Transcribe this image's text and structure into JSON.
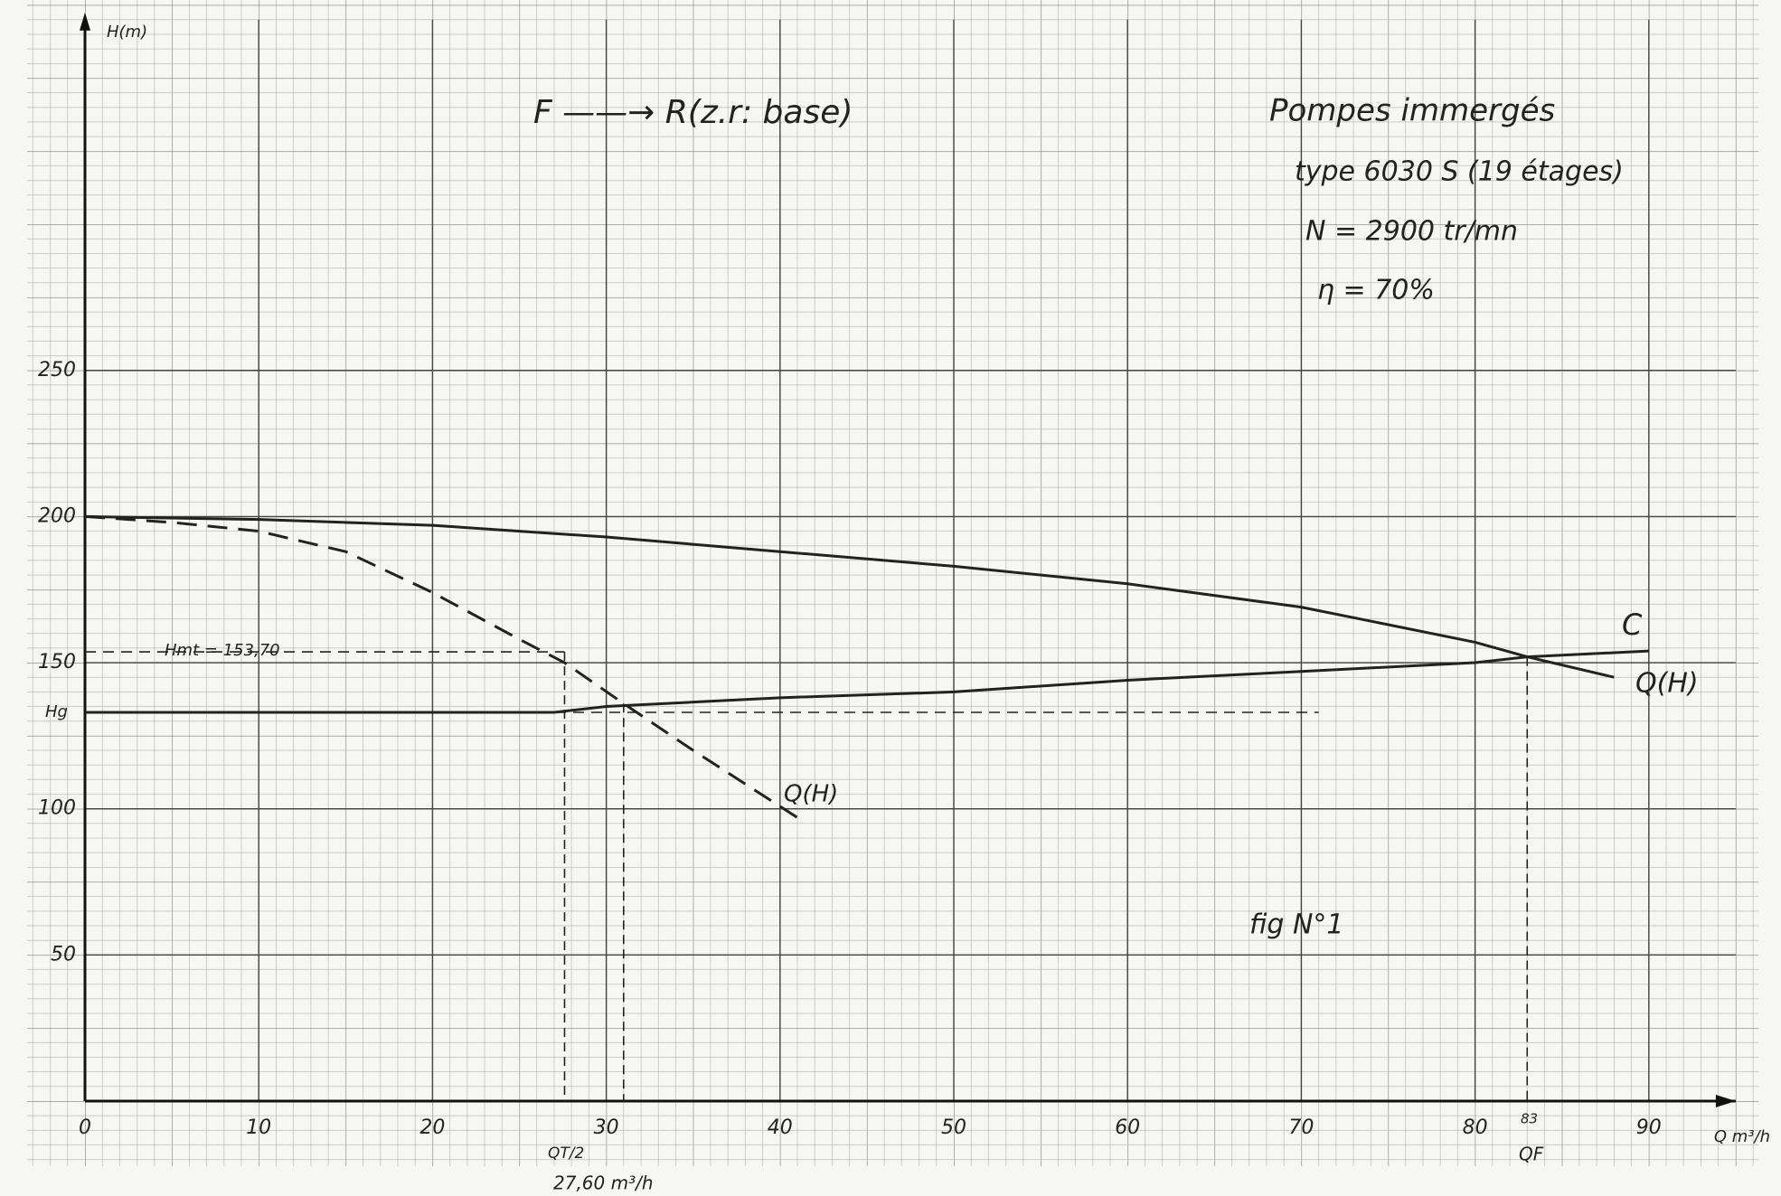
{
  "chart_data": {
    "type": "line",
    "y_label": "H(m)",
    "x_label": "Q m³/h",
    "annotations": {
      "scheme": "F ——→ R(z.r: base)",
      "title": "Pompes immergés",
      "pump_type": "type 6030 S (19 étages)",
      "speed": "N = 2900 tr/mn",
      "efficiency": "η = 70%",
      "figure": "fig N°1",
      "hmt": "Hmt = 153,70",
      "hg": "Hg",
      "qf_value": "83",
      "qf": "QF",
      "qt2": "QT/2",
      "qt2_value": "27,60 m³/h"
    },
    "xlim": [
      0,
      95
    ],
    "ylim": [
      0,
      370
    ],
    "xticks": [
      0,
      10,
      20,
      30,
      40,
      50,
      60,
      70,
      80,
      90
    ],
    "yticks": [
      50,
      100,
      150,
      200,
      250
    ],
    "grid": true,
    "series": [
      {
        "name": "Q(H)",
        "color": "#222222",
        "dashed": false,
        "x": [
          0,
          10,
          20,
          30,
          40,
          50,
          60,
          70,
          80,
          83,
          88
        ],
        "values": [
          200,
          199,
          197,
          193,
          188,
          183,
          177,
          169,
          157,
          152,
          145
        ]
      },
      {
        "name": "C",
        "color": "#222222",
        "dashed": false,
        "x": [
          0,
          20,
          27,
          30,
          40,
          50,
          60,
          70,
          80,
          83,
          90
        ],
        "values": [
          133,
          133,
          133,
          135,
          138,
          140,
          144,
          147,
          150,
          152,
          154
        ]
      },
      {
        "name": "Q(H)",
        "color": "#222222",
        "dashed": true,
        "x": [
          0,
          5,
          10,
          15,
          20,
          25,
          27.6,
          31,
          35,
          41
        ],
        "values": [
          200,
          198,
          195,
          188,
          174,
          158,
          150,
          136,
          120,
          97
        ]
      }
    ],
    "horizontals": [
      {
        "y": 153.7,
        "x_end": 27.6
      },
      {
        "y": 133,
        "x_end": 71
      }
    ],
    "verticals": [
      {
        "x": 27.6,
        "y_top": 153.7
      },
      {
        "x": 31,
        "y_top": 136
      },
      {
        "x": 83,
        "y_top": 152
      }
    ]
  }
}
